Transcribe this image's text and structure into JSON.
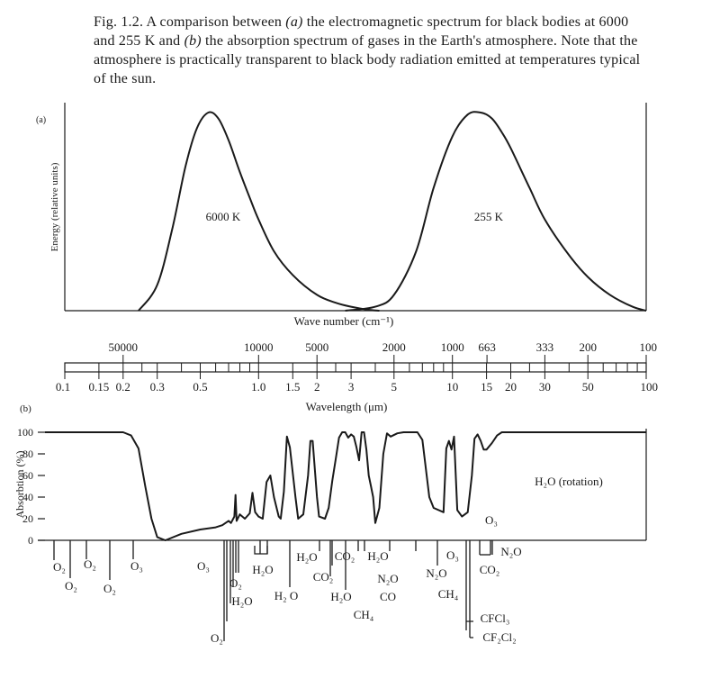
{
  "caption": {
    "prefix": "Fig. 1.2. A comparison between ",
    "label_a": "(a)",
    "middle": " the electromagnetic spectrum for black bodies at 6000 and 255 K and ",
    "label_b": "(b)",
    "suffix": " the absorption spectrum of gases in the Earth's atmosphere. Note that the atmosphere is practically transparent to black body radiation emitted at temperatures typical of the sun."
  },
  "chart_data": [
    {
      "panel": "(a)",
      "type": "line",
      "ylabel": "Energy (relative units)",
      "xlabel": "Wave number (cm⁻¹)",
      "x_scale": "log",
      "x_unit": "wavelength_um",
      "xlim": [
        0.1,
        100
      ],
      "ylim": [
        0,
        100
      ],
      "series": [
        {
          "name": "6000 K",
          "x": [
            0.24,
            0.3,
            0.36,
            0.42,
            0.48,
            0.55,
            0.62,
            0.7,
            0.8,
            0.9,
            1.0,
            1.2,
            1.5,
            2.0,
            2.5,
            3.0,
            3.6,
            4.2
          ],
          "y": [
            0,
            13,
            42,
            73,
            92,
            100,
            97,
            86,
            70,
            57,
            46,
            30,
            18,
            8,
            4,
            2,
            0.6,
            0
          ]
        },
        {
          "name": "255 K",
          "x": [
            2.8,
            4.0,
            5.0,
            6.5,
            8.0,
            10,
            12,
            14,
            16,
            18,
            20,
            25,
            30,
            40,
            50,
            65,
            85,
            100
          ],
          "y": [
            0,
            2,
            8,
            30,
            62,
            88,
            99,
            100,
            97,
            90,
            82,
            62,
            46,
            28,
            17,
            8,
            2,
            0
          ]
        }
      ]
    },
    {
      "panel": "(b)",
      "type": "line",
      "ylabel": "Absorbtion (%)",
      "xlabel": "Wavelength (μm)",
      "x_scale": "log",
      "xlim": [
        0.1,
        100
      ],
      "ylim": [
        0,
        100
      ],
      "yticks": [
        0,
        20,
        40,
        60,
        80,
        100
      ],
      "annotation": "H₂O (rotation)",
      "series": [
        {
          "name": "",
          "x": [
            0.1,
            0.2,
            0.22,
            0.24,
            0.26,
            0.28,
            0.3,
            0.33,
            0.4,
            0.5,
            0.6,
            0.65,
            0.7,
            0.72,
            0.75,
            0.76,
            0.77,
            0.8,
            0.85,
            0.9,
            0.93,
            0.96,
            1.0,
            1.05,
            1.1,
            1.15,
            1.2,
            1.27,
            1.3,
            1.35,
            1.4,
            1.45,
            1.55,
            1.6,
            1.7,
            1.8,
            1.85,
            1.9,
            2.0,
            2.05,
            2.2,
            2.3,
            2.4,
            2.5,
            2.6,
            2.7,
            2.75,
            2.8,
            2.9,
            3.0,
            3.1,
            3.2,
            3.3,
            3.4,
            3.5,
            3.6,
            3.7,
            3.8,
            3.9,
            4.0,
            4.2,
            4.4,
            4.6,
            4.8,
            5.2,
            5.6,
            6.0,
            6.3,
            6.6,
            7.0,
            7.6,
            8.0,
            9.0,
            9.3,
            9.6,
            9.9,
            10.2,
            10.6,
            11.2,
            12.0,
            12.6,
            13.0,
            13.5,
            14.0,
            14.5,
            15.0,
            16.0,
            17.0,
            18.0,
            19.0,
            20.0,
            22.0,
            25.0,
            100.0
          ],
          "y": [
            100,
            100,
            97,
            85,
            50,
            20,
            3,
            0,
            6,
            10,
            12,
            14,
            18,
            16,
            22,
            42,
            18,
            24,
            20,
            25,
            44,
            26,
            22,
            20,
            54,
            60,
            40,
            22,
            20,
            45,
            96,
            86,
            40,
            20,
            24,
            60,
            92,
            92,
            40,
            22,
            20,
            30,
            55,
            75,
            95,
            100,
            100,
            100,
            95,
            98,
            96,
            86,
            74,
            100,
            100,
            84,
            60,
            50,
            40,
            16,
            30,
            80,
            99,
            96,
            99,
            100,
            100,
            100,
            100,
            93,
            40,
            30,
            26,
            85,
            92,
            84,
            96,
            28,
            22,
            26,
            60,
            94,
            98,
            92,
            84,
            84,
            90,
            97,
            100,
            100,
            100,
            100,
            100,
            100
          ]
        }
      ],
      "bands": [
        {
          "label": "O₂"
        },
        {
          "label": "O₂"
        },
        {
          "label": "O₂"
        },
        {
          "label": "O₂"
        },
        {
          "label": "O₃"
        },
        {
          "label": "O₃"
        },
        {
          "label": "O₂"
        },
        {
          "label": "H₂O"
        },
        {
          "label": "O₂"
        },
        {
          "label": "H₂O"
        },
        {
          "label": "H₂ O"
        },
        {
          "label": "H₂O"
        },
        {
          "label": "H₂O"
        },
        {
          "label": "CO₂"
        },
        {
          "label": "CO₂"
        },
        {
          "label": "H₂O"
        },
        {
          "label": "N₂O"
        },
        {
          "label": "CH₄"
        },
        {
          "label": "CO"
        },
        {
          "label": "N₂O"
        },
        {
          "label": "CH₄"
        },
        {
          "label": "O₃"
        },
        {
          "label": "O₃"
        },
        {
          "label": "CO₂"
        },
        {
          "label": "N₂O"
        },
        {
          "label": "CFCl₃"
        },
        {
          "label": "CF₂Cl₂"
        }
      ]
    }
  ],
  "panel_labels": {
    "a": "(a)",
    "b": "(b)"
  },
  "curve_labels": {
    "hot": "6000 K",
    "cold": "255 K"
  },
  "axis_labels": {
    "energy": "Energy (relative units)",
    "wave_number": "Wave number (cm⁻¹)",
    "wavelength": "Wavelength (μm)",
    "absorption": "Absorbtion (%)"
  },
  "wavenumber_ticks": [
    {
      "label": "50000",
      "wl": 0.2
    },
    {
      "label": "10000",
      "wl": 1.0
    },
    {
      "label": "5000",
      "wl": 2.0
    },
    {
      "label": "2000",
      "wl": 5.0
    },
    {
      "label": "1000",
      "wl": 10.0
    },
    {
      "label": "663",
      "wl": 15.08
    },
    {
      "label": "333",
      "wl": 30.0
    },
    {
      "label": "200",
      "wl": 50.0
    },
    {
      "label": "100",
      "wl": 100.0
    }
  ],
  "wavelength_ticks": [
    {
      "label": "0.1",
      "wl": 0.1
    },
    {
      "label": "0.15",
      "wl": 0.15
    },
    {
      "label": "0.2",
      "wl": 0.2
    },
    {
      "label": "0.3",
      "wl": 0.3
    },
    {
      "label": "0.5",
      "wl": 0.5
    },
    {
      "label": "1.0",
      "wl": 1.0
    },
    {
      "label": "1.5",
      "wl": 1.5
    },
    {
      "label": "2",
      "wl": 2.0
    },
    {
      "label": "3",
      "wl": 3.0
    },
    {
      "label": "5",
      "wl": 5.0
    },
    {
      "label": "10",
      "wl": 10.0
    },
    {
      "label": "15",
      "wl": 15.0
    },
    {
      "label": "20",
      "wl": 20.0
    },
    {
      "label": "30",
      "wl": 30.0
    },
    {
      "label": "50",
      "wl": 50.0
    },
    {
      "label": "100",
      "wl": 100.0
    }
  ],
  "bar_ticks": [
    0.1,
    0.15,
    0.2,
    0.25,
    0.3,
    0.4,
    0.5,
    0.6,
    0.7,
    0.8,
    0.9,
    1,
    1.5,
    2,
    2.5,
    3,
    4,
    5,
    6,
    7,
    8,
    9,
    10,
    15,
    20,
    25,
    30,
    40,
    50,
    60,
    70,
    80,
    90,
    100
  ],
  "abs_ticks": [
    "0",
    "20",
    "40",
    "60",
    "80",
    "100"
  ],
  "colors": {
    "ink": "#1a1a1a",
    "paper": "#ffffff"
  }
}
